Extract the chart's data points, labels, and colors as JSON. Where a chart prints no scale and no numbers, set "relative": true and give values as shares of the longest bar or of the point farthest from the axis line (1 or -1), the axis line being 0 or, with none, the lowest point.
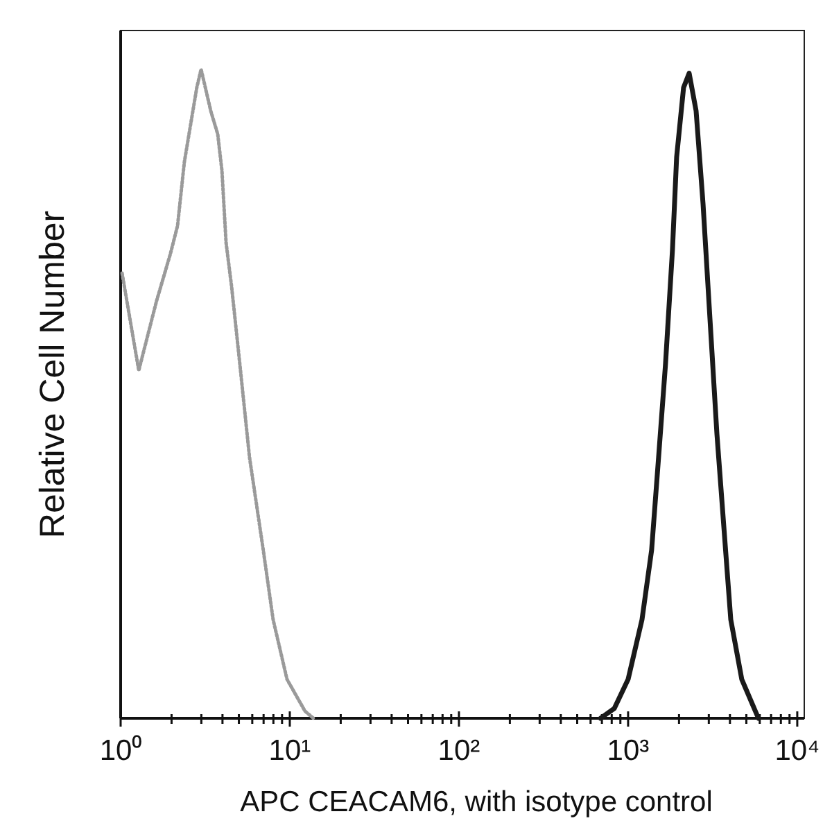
{
  "chart_data": {
    "type": "line",
    "xlabel": "APC CEACAM6, with isotype control",
    "ylabel": "Relative Cell Number",
    "relative": true,
    "log": "x",
    "xlim": [
      1,
      11000
    ],
    "xticks": [
      {
        "value": 1,
        "label": "10⁰"
      },
      {
        "value": 2,
        "label": null
      },
      {
        "value": 3,
        "label": null
      },
      {
        "value": 4,
        "label": null
      },
      {
        "value": 5,
        "label": null
      },
      {
        "value": 6,
        "label": null
      },
      {
        "value": 7,
        "label": null
      },
      {
        "value": 8,
        "label": null
      },
      {
        "value": 9,
        "label": null
      },
      {
        "value": 10,
        "label": "10¹"
      },
      {
        "value": 20,
        "label": null
      },
      {
        "value": 30,
        "label": null
      },
      {
        "value": 40,
        "label": null
      },
      {
        "value": 50,
        "label": null
      },
      {
        "value": 60,
        "label": null
      },
      {
        "value": 70,
        "label": null
      },
      {
        "value": 80,
        "label": null
      },
      {
        "value": 90,
        "label": null
      },
      {
        "value": 100,
        "label": "10²"
      },
      {
        "value": 200,
        "label": null
      },
      {
        "value": 300,
        "label": null
      },
      {
        "value": 400,
        "label": null
      },
      {
        "value": 500,
        "label": null
      },
      {
        "value": 600,
        "label": null
      },
      {
        "value": 700,
        "label": null
      },
      {
        "value": 800,
        "label": null
      },
      {
        "value": 900,
        "label": null
      },
      {
        "value": 1000,
        "label": "10³"
      },
      {
        "value": 2000,
        "label": null
      },
      {
        "value": 3000,
        "label": null
      },
      {
        "value": 4000,
        "label": null
      },
      {
        "value": 5000,
        "label": null
      },
      {
        "value": 6000,
        "label": null
      },
      {
        "value": 7000,
        "label": null
      },
      {
        "value": 8000,
        "label": null
      },
      {
        "value": 9000,
        "label": null
      },
      {
        "value": 10000,
        "label": "10⁴"
      }
    ],
    "grid": false,
    "series": [
      {
        "color": "#9a9a9a",
        "line_style": "dotted",
        "x": [
          1.02,
          1.28,
          1.63,
          1.97,
          2.17,
          2.38,
          2.82,
          2.99,
          3.41,
          3.75,
          3.97,
          4.2,
          4.53,
          5.07,
          5.78,
          6.98,
          7.97,
          9.63,
          12.3,
          13.8
        ],
        "values": [
          0.686,
          0.536,
          0.643,
          0.716,
          0.759,
          0.857,
          0.972,
          1.0,
          0.936,
          0.9,
          0.844,
          0.733,
          0.665,
          0.545,
          0.402,
          0.258,
          0.152,
          0.06,
          0.011,
          0
        ]
      },
      {
        "color": "#1a1a1a",
        "line_style": "solid",
        "x": [
          686,
          828,
          1000,
          1208,
          1377,
          1514,
          1663,
          1829,
          1936,
          2128,
          2296,
          2523,
          2773,
          3048,
          3350,
          3681,
          4045,
          4699,
          5893
        ],
        "values": [
          0,
          0.015,
          0.06,
          0.152,
          0.259,
          0.402,
          0.545,
          0.722,
          0.865,
          0.972,
          0.994,
          0.936,
          0.793,
          0.615,
          0.438,
          0.295,
          0.152,
          0.06,
          0
        ]
      }
    ]
  }
}
